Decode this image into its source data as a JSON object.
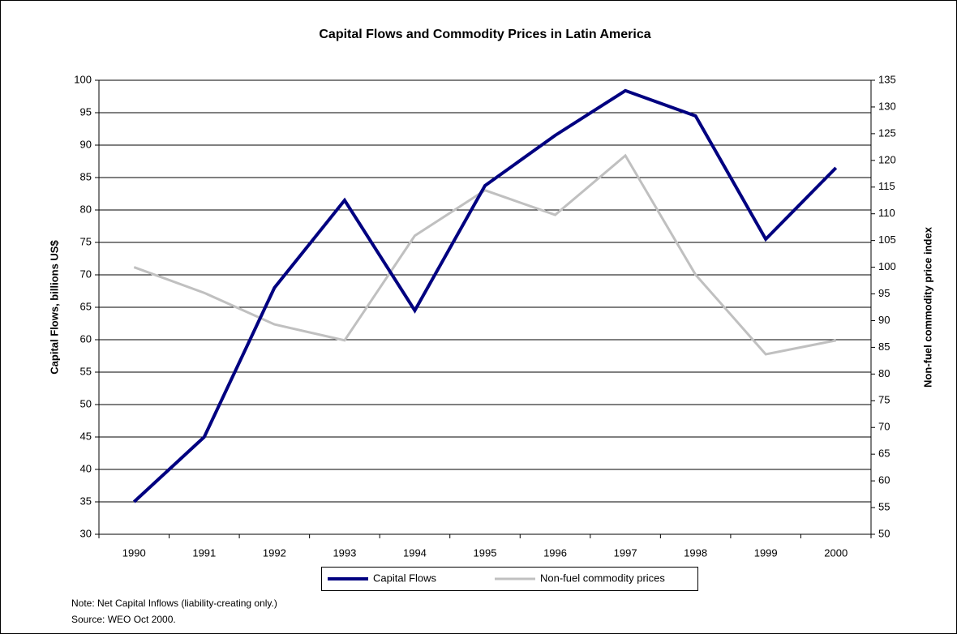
{
  "chart_data": {
    "type": "line",
    "title": "Capital  Flows and Commodity Prices in Latin America",
    "ylabel": "Capital Flows, billions US$",
    "y2label": "Non-fuel commodity price index",
    "categories": [
      "1990",
      "1991",
      "1992",
      "1993",
      "1994",
      "1995",
      "1996",
      "1997",
      "1998",
      "1999",
      "2000"
    ],
    "series": [
      {
        "name": "Capital Flows",
        "color": "#000080",
        "values": [
          35,
          45,
          68,
          81.5,
          64.5,
          83.75,
          91.5,
          98.4,
          94.5,
          75.5,
          86.5
        ]
      },
      {
        "name": "Non-fuel commodity prices",
        "color": "#c0c0c0",
        "axis": "y2",
        "values": [
          100,
          95.2,
          89.3,
          86.3,
          105.9,
          114.4,
          109.8,
          120.9,
          98.6,
          83.7,
          86.3
        ]
      }
    ],
    "ylim": [
      30,
      100
    ],
    "yticks": [
      30,
      35,
      40,
      45,
      50,
      55,
      60,
      65,
      70,
      75,
      80,
      85,
      90,
      95,
      100
    ],
    "y2lim": [
      50,
      135
    ],
    "y2ticks": [
      50,
      55,
      60,
      65,
      70,
      75,
      80,
      85,
      90,
      95,
      100,
      105,
      110,
      115,
      120,
      125,
      130,
      135
    ],
    "grid": true,
    "legend": "bottom",
    "notes": [
      "Note: Net Capital Inflows (liability-creating only.)",
      "Source: WEO Oct 2000."
    ]
  }
}
